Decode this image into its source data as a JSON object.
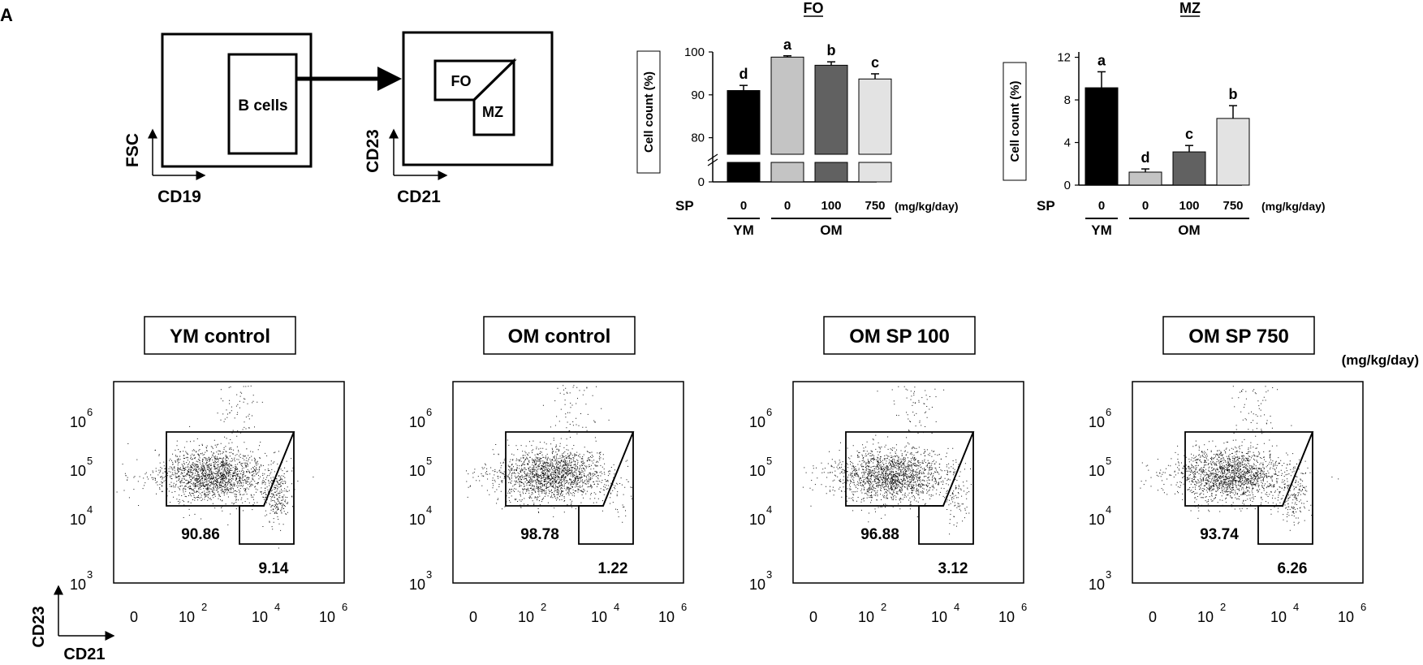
{
  "panel_label": "A",
  "schematic": {
    "left": {
      "y_axis": "FSC",
      "x_axis": "CD19",
      "gate": "B cells"
    },
    "right": {
      "y_axis": "CD23",
      "x_axis": "CD21",
      "gate_fo": "FO",
      "gate_mz": "MZ"
    }
  },
  "chart_data": [
    {
      "type": "bar",
      "title": "FO",
      "ylabel": "Cell count (%)",
      "xlabel_prefix": "SP",
      "unit": "(mg/kg/day)",
      "categories": [
        "0",
        "0",
        "100",
        "750"
      ],
      "groups": [
        "YM",
        "OM"
      ],
      "values": [
        91.0,
        98.8,
        96.9,
        93.7
      ],
      "errors": [
        1.2,
        0.3,
        0.8,
        1.2
      ],
      "letters": [
        "d",
        "a",
        "b",
        "c"
      ],
      "colors": [
        "#000000",
        "#c4c4c4",
        "#616161",
        "#e3e3e3"
      ],
      "yticks": [
        "0",
        "80",
        "90",
        "100"
      ],
      "axis_break": true,
      "ylim": [
        75,
        100
      ]
    },
    {
      "type": "bar",
      "title": "MZ",
      "ylabel": "Cell count (%)",
      "xlabel_prefix": "SP",
      "unit": "(mg/kg/day)",
      "categories": [
        "0",
        "0",
        "100",
        "750"
      ],
      "groups": [
        "YM",
        "OM"
      ],
      "values": [
        9.14,
        1.22,
        3.12,
        6.26
      ],
      "errors": [
        1.5,
        0.3,
        0.6,
        1.2
      ],
      "letters": [
        "a",
        "d",
        "c",
        "b"
      ],
      "colors": [
        "#000000",
        "#c4c4c4",
        "#616161",
        "#e3e3e3"
      ],
      "yticks": [
        "0",
        "4",
        "8",
        "12"
      ],
      "ylim": [
        0,
        12.5
      ]
    },
    {
      "type": "scatter",
      "panels": [
        {
          "title": "YM control",
          "fo": "90.86",
          "mz": "9.14"
        },
        {
          "title": "OM control",
          "fo": "98.78",
          "mz": "1.22"
        },
        {
          "title": "OM SP 100",
          "fo": "96.88",
          "mz": "3.12"
        },
        {
          "title": "OM SP 750",
          "fo": "93.74",
          "mz": "6.26"
        }
      ],
      "unit": "(mg/kg/day)",
      "x_ticks": [
        "0",
        "10",
        "10",
        "10"
      ],
      "x_exps": [
        "",
        "2",
        "4",
        "6"
      ],
      "y_ticks": [
        "10",
        "10",
        "10",
        "10"
      ],
      "y_exps": [
        "3",
        "4",
        "5",
        "6"
      ],
      "ylabel": "CD23",
      "xlabel": "CD21"
    }
  ]
}
